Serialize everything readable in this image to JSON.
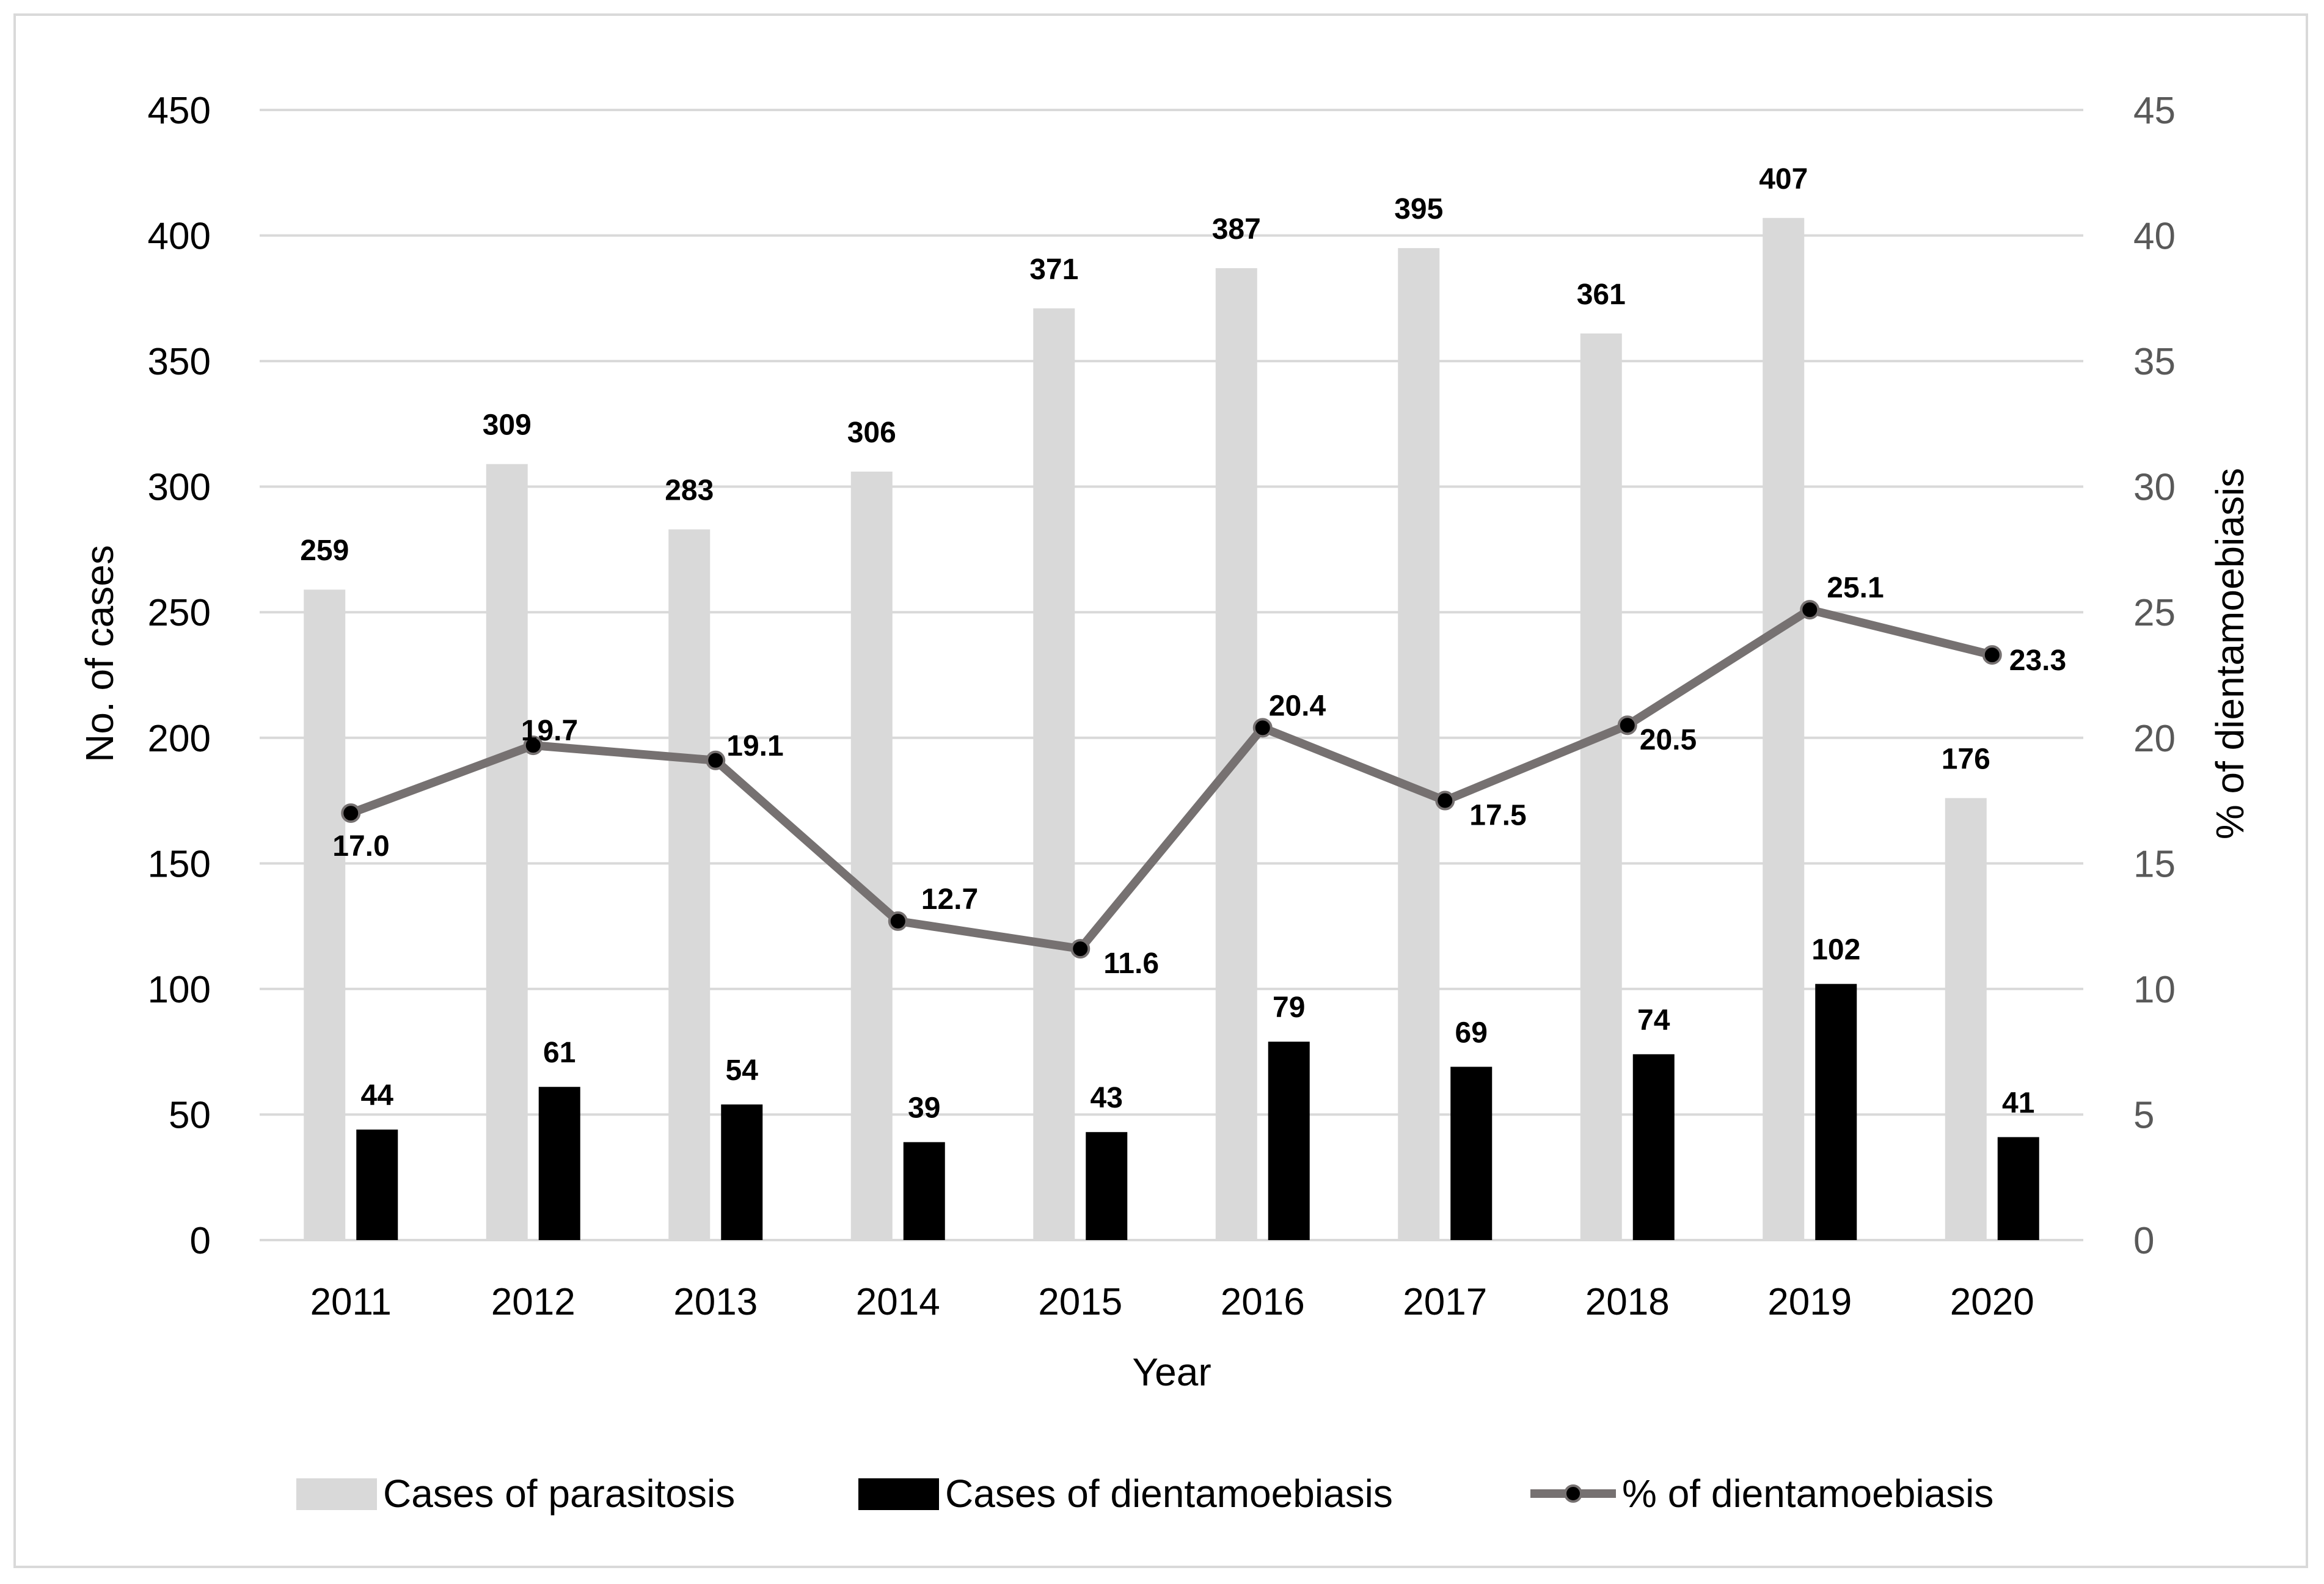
{
  "chart_data": {
    "type": "bar",
    "categories": [
      "2011",
      "2012",
      "2013",
      "2014",
      "2015",
      "2016",
      "2017",
      "2018",
      "2019",
      "2020"
    ],
    "series": [
      {
        "name": "Cases of parasitosis",
        "kind": "bar",
        "axis": "left",
        "color": "#d9d9d9",
        "values": [
          259,
          309,
          283,
          306,
          371,
          387,
          395,
          361,
          407,
          176
        ]
      },
      {
        "name": "Cases of dientamoebiasis",
        "kind": "bar",
        "axis": "left",
        "color": "#000000",
        "values": [
          44,
          61,
          54,
          39,
          43,
          79,
          69,
          74,
          102,
          41
        ]
      },
      {
        "name": "% of dientamoebiasis",
        "kind": "line",
        "axis": "right",
        "color": "#767171",
        "values": [
          17.0,
          19.7,
          19.1,
          12.7,
          11.6,
          20.4,
          17.5,
          20.5,
          25.1,
          23.3
        ],
        "labels": [
          "17.0",
          "19.7",
          "19.1",
          "12.7",
          "11.6",
          "20.4",
          "17.5",
          "20.5",
          "25.1",
          "23.3"
        ]
      }
    ],
    "title": "",
    "xlabel": "Year",
    "ylabel": "No. of cases",
    "y2label": "% of dientamoebiasis",
    "ylim": [
      0,
      450
    ],
    "y2lim": [
      0,
      45
    ],
    "yticks": [
      "0",
      "50",
      "100",
      "150",
      "200",
      "250",
      "300",
      "350",
      "400",
      "450"
    ],
    "y2ticks": [
      "0",
      "5",
      "10",
      "15",
      "20",
      "25",
      "30",
      "35",
      "40",
      "45"
    ],
    "grid": true,
    "legend_position": "bottom"
  }
}
